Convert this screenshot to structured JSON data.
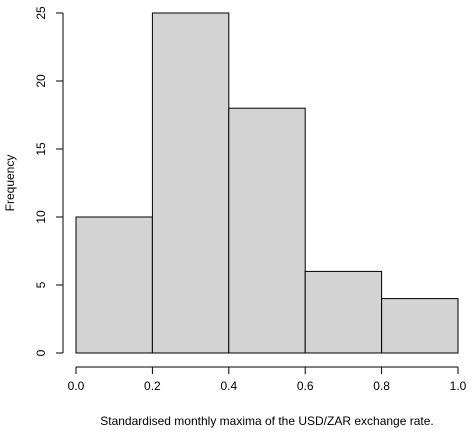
{
  "chart_data": {
    "type": "bar",
    "histogram": true,
    "bin_edges": [
      0.0,
      0.2,
      0.4,
      0.6,
      0.8,
      1.0
    ],
    "values": [
      10,
      25,
      18,
      6,
      4
    ],
    "xlabel": "Standardised monthly maxima of the USD/ZAR exchange rate.",
    "ylabel": "Frequency",
    "xlim": [
      0,
      1
    ],
    "ylim": [
      0,
      25
    ],
    "x_ticks": [
      0.0,
      0.2,
      0.4,
      0.6,
      0.8,
      1.0
    ],
    "x_tick_labels": [
      "0.0",
      "0.2",
      "0.4",
      "0.6",
      "0.8",
      "1.0"
    ],
    "y_ticks": [
      0,
      5,
      10,
      15,
      20,
      25
    ],
    "y_tick_labels": [
      "0",
      "5",
      "10",
      "15",
      "20",
      "25"
    ],
    "grid": false,
    "colors": {
      "bar_fill": "#d3d3d3",
      "bar_stroke": "#000000"
    }
  }
}
